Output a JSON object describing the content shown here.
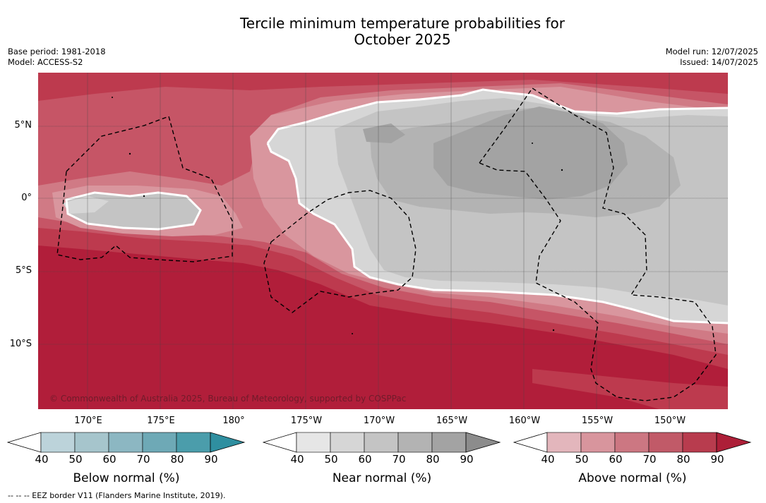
{
  "title": {
    "line1": "Tercile minimum temperature probabilities for",
    "line2": "October 2025"
  },
  "meta": {
    "base_period": "Base period: 1981-2018",
    "model": "Model: ACCESS-S2",
    "model_run": "Model run: 12/07/2025",
    "issued": "Issued: 14/07/2025"
  },
  "map": {
    "lat_labels": [
      "5°N",
      "0°",
      "5°S",
      "10°S"
    ],
    "lon_labels": [
      "170°E",
      "175°E",
      "180°",
      "175°W",
      "170°W",
      "165°W",
      "160°W",
      "155°W",
      "150°W"
    ],
    "copyright": "© Commonwealth of Australia 2025, Bureau of Meteorology, supported by COSPPac",
    "colors": {
      "above_90": "#b11e3a",
      "above_80": "#bd3a4e",
      "above_70": "#c65566",
      "above_60": "#d07a85",
      "above_50": "#d9969e",
      "near_40": "#e8e8e8",
      "near_50": "#d6d6d6",
      "near_60": "#c4c4c4",
      "near_70": "#b3b3b3",
      "near_80": "#a3a3a3",
      "below_50": "#a6c5cc"
    }
  },
  "colorbars": [
    {
      "name": "below",
      "label": "Below normal (%)",
      "ticks": [
        "40",
        "50",
        "60",
        "70",
        "80",
        "90"
      ],
      "colors": [
        "#bcd3da",
        "#a6c5cc",
        "#8cb7c2",
        "#6ea9b6",
        "#4b9dab",
        "#2f8fa0"
      ]
    },
    {
      "name": "near",
      "label": "Near normal (%)",
      "ticks": [
        "40",
        "50",
        "60",
        "70",
        "80",
        "90"
      ],
      "colors": [
        "#e6e6e6",
        "#d6d6d6",
        "#c4c4c4",
        "#b3b3b3",
        "#a3a3a3",
        "#8c8c8c"
      ]
    },
    {
      "name": "above",
      "label": "Above normal (%)",
      "ticks": [
        "40",
        "50",
        "60",
        "70",
        "80",
        "90"
      ],
      "colors": [
        "#e3b6bc",
        "#d8959d",
        "#cc7782",
        "#c15a68",
        "#b83c4e",
        "#ad1f38"
      ]
    }
  ],
  "footnote": "--  --  -- EEZ border V11 (Flanders Marine Institute, 2019)."
}
